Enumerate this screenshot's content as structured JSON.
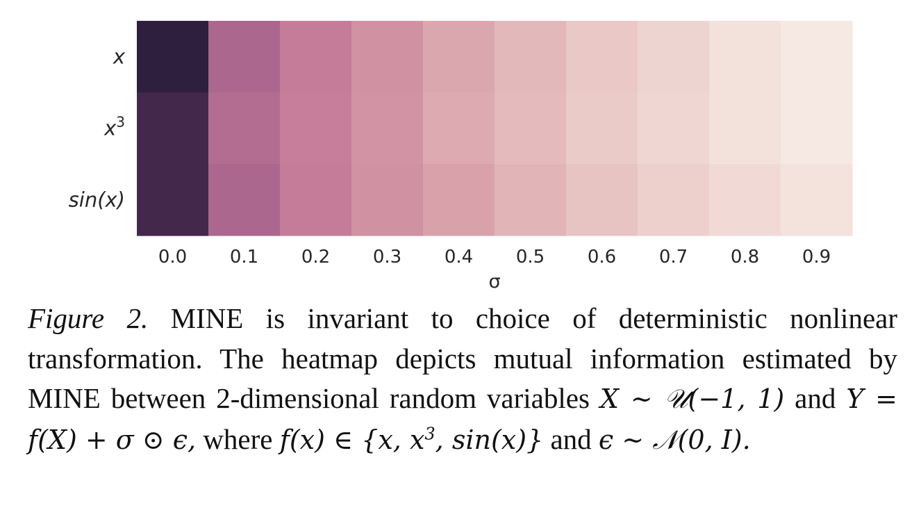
{
  "chart_data": {
    "type": "heatmap",
    "title": "",
    "xlabel": "σ",
    "ylabel": "",
    "x_categories": [
      "0.0",
      "0.1",
      "0.2",
      "0.3",
      "0.4",
      "0.5",
      "0.6",
      "0.7",
      "0.8",
      "0.9"
    ],
    "y_categories": [
      "x",
      "x3",
      "sin(x)"
    ],
    "y_tick_display": [
      {
        "base": "x",
        "sup": ""
      },
      {
        "base": "x",
        "sup": "3"
      },
      {
        "base": "sin(x)",
        "sup": ""
      }
    ],
    "values": [
      [
        1.0,
        0.58,
        0.47,
        0.38,
        0.29,
        0.23,
        0.17,
        0.12,
        0.06,
        0.02
      ],
      [
        0.92,
        0.55,
        0.46,
        0.37,
        0.28,
        0.22,
        0.16,
        0.11,
        0.06,
        0.02
      ],
      [
        0.92,
        0.58,
        0.47,
        0.38,
        0.31,
        0.24,
        0.19,
        0.14,
        0.09,
        0.05
      ]
    ],
    "colormap": "seaborn cubehelix light (cream to dark purple)",
    "colorbar": false,
    "grid": false
  },
  "caption": {
    "label": "Figure 2.",
    "text_1": "MINE is invariant to choice of deterministic nonlinear transformation. The heatmap depicts mutual information estimated by MINE between 2-dimensional random variables",
    "X_dist": "X ∼ 𝒰(−1, 1)",
    "text_2": "and",
    "Y_def": "Y = f(X) + σ ⊙ ϵ,",
    "text_3": "where",
    "f_def": "f(x) ∈ {x, x",
    "f_sup": "3",
    "f_def_end": ", sin(x)}",
    "text_4": "and",
    "eps_def": "ϵ ∼ 𝒩(0, I)."
  }
}
